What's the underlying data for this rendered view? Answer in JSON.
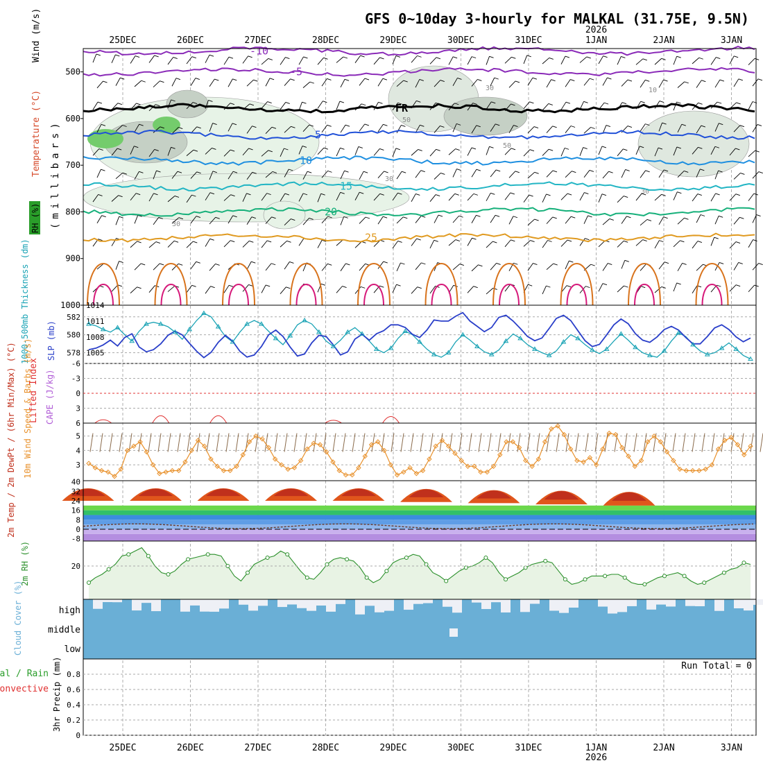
{
  "title": "GFS 0~10day 3-hourly for MALKAL (31.75E, 9.5N)",
  "dates": [
    "25DEC",
    "26DEC",
    "27DEC",
    "28DEC",
    "29DEC",
    "30DEC",
    "31DEC",
    "1JAN",
    "2JAN",
    "3JAN"
  ],
  "year_label": "2026",
  "colors": {
    "temp_label": "#d64a2a",
    "wind_label": "#000000",
    "rh_green": "#2a9d2a",
    "thickness": "#1aa3b5",
    "slp": "#2a3fc9",
    "lifted": "#e03030",
    "cape": "#b05cd6",
    "wind10": "#e8902a",
    "cloud": "#6aafd6",
    "rh2m": "#2a8f2a"
  },
  "chart_data": [
    {
      "type": "contour",
      "panel": "upper_air",
      "ylabel": "(millibars)",
      "side_labels": [
        "RH (%)",
        "Temperature (°C)",
        "Wind (m/s)"
      ],
      "y_ticks": [
        500,
        600,
        700,
        800,
        900,
        1000
      ],
      "ylim": [
        450,
        1000
      ],
      "isotherms": [
        {
          "label": "-10",
          "level_mb": 455
        },
        {
          "label": "-5",
          "level_mb": 500
        },
        {
          "label": "FR",
          "level_mb": 578
        },
        {
          "label": "5",
          "level_mb": 635
        },
        {
          "label": "10",
          "level_mb": 690
        },
        {
          "label": "15",
          "level_mb": 745
        },
        {
          "label": "20",
          "level_mb": 800
        },
        {
          "label": "25",
          "level_mb": 855
        }
      ],
      "rh_labels": [
        "30",
        "50",
        "10"
      ]
    },
    {
      "type": "line",
      "panel": "thickness_slp",
      "ylabel_left": "1000-500mb Thickness (dm)",
      "ylabel_right": "SLP (mb)",
      "left_ticks": [
        578,
        580,
        582
      ],
      "right_ticks": [
        1005,
        1008,
        1011,
        1014
      ],
      "left_ylim": [
        576.8,
        583.3
      ],
      "right_ylim": [
        1003.0,
        1014.0
      ],
      "thickness": [
        581.2,
        581.0,
        580.6,
        580.3,
        580.8,
        580.0,
        579.3,
        580.4,
        581.2,
        581.4,
        581.2,
        580.9,
        580.3,
        579.5,
        580.6,
        581.6,
        582.4,
        582.0,
        580.9,
        579.8,
        579.2,
        580.3,
        581.2,
        581.6,
        581.2,
        580.4,
        579.6,
        578.9,
        579.9,
        581.1,
        581.6,
        581.2,
        580.3,
        579.3,
        578.7,
        579.4,
        580.3,
        580.8,
        580.1,
        579.3,
        578.4,
        578.0,
        578.5,
        579.6,
        580.4,
        580.0,
        579.2,
        578.4,
        577.8,
        577.5,
        578.0,
        579.2,
        580.0,
        579.4,
        578.7,
        578.1,
        577.8,
        578.3,
        579.3,
        580.1,
        579.6,
        578.9,
        578.4,
        578.0,
        577.7,
        578.2,
        579.2,
        580.0,
        579.6,
        578.9,
        578.3,
        577.9,
        578.4,
        579.3,
        580.1,
        579.4,
        578.6,
        578.0,
        577.7,
        577.5,
        578.2,
        579.3,
        580.2,
        579.8,
        578.9,
        578.2,
        577.8,
        578.0,
        578.5,
        579.1,
        578.4,
        577.7,
        577.3
      ],
      "slp": [
        1005.6,
        1005.9,
        1006.5,
        1007.4,
        1006.3,
        1007.9,
        1008.6,
        1006.1,
        1005.2,
        1005.6,
        1006.7,
        1008.3,
        1009.1,
        1008.4,
        1006.8,
        1005.3,
        1004.1,
        1005.1,
        1007.0,
        1008.3,
        1007.2,
        1005.3,
        1004.2,
        1004.6,
        1006.2,
        1008.4,
        1009.3,
        1008.1,
        1006.1,
        1004.4,
        1004.8,
        1006.9,
        1008.3,
        1008.1,
        1006.5,
        1004.6,
        1005.2,
        1007.6,
        1008.5,
        1007.4,
        1008.6,
        1009.2,
        1010.3,
        1010.3,
        1009.8,
        1008.5,
        1007.9,
        1009.3,
        1011.2,
        1011.0,
        1011.0,
        1011.9,
        1012.6,
        1011.0,
        1010.0,
        1009.0,
        1009.8,
        1011.7,
        1012.1,
        1011.0,
        1009.6,
        1008.1,
        1007.3,
        1007.8,
        1009.6,
        1011.5,
        1012.1,
        1011.1,
        1009.2,
        1007.3,
        1006.2,
        1006.6,
        1008.4,
        1010.3,
        1011.4,
        1010.5,
        1008.6,
        1007.4,
        1007.0,
        1008.0,
        1009.4,
        1010.0,
        1009.3,
        1007.9,
        1006.7,
        1006.7,
        1008.1,
        1009.7,
        1010.3,
        1009.4,
        1008.0,
        1007.1,
        1007.8
      ]
    },
    {
      "type": "line",
      "panel": "stability",
      "ylabel_left": "Lifted Index",
      "ylabel_right": "CAPE (J/kg)",
      "y_ticks": [
        "6",
        "3",
        "0",
        "-3",
        "-6"
      ],
      "lifted_index_peaks": [
        2,
        10,
        18,
        34,
        42
      ],
      "lifted_index_values": [
        5.2,
        3.6,
        3.6,
        5.4,
        3.9
      ]
    },
    {
      "type": "line",
      "panel": "wind10m",
      "ylabel": "10m Wind Speed & Barbs (m/s)",
      "y_ticks": [
        3,
        4,
        5
      ],
      "ylim": [
        1.9,
        5.9
      ],
      "speed": [
        3.1,
        2.8,
        2.6,
        2.5,
        2.2,
        2.7,
        4.0,
        4.3,
        4.6,
        3.9,
        3.0,
        2.4,
        2.5,
        2.6,
        2.6,
        3.2,
        4.0,
        4.7,
        4.3,
        3.4,
        2.9,
        2.6,
        2.6,
        2.9,
        3.7,
        4.6,
        5.0,
        4.8,
        4.2,
        3.4,
        3.0,
        2.7,
        2.8,
        3.3,
        4.1,
        4.5,
        4.4,
        3.9,
        3.2,
        2.6,
        2.3,
        2.3,
        2.8,
        3.6,
        4.4,
        4.6,
        4.0,
        3.0,
        2.3,
        2.5,
        2.8,
        2.4,
        2.6,
        3.4,
        4.3,
        4.7,
        4.3,
        3.8,
        3.3,
        2.9,
        2.9,
        2.5,
        2.5,
        2.9,
        3.7,
        4.6,
        4.6,
        4.2,
        3.3,
        2.9,
        3.4,
        4.6,
        5.5,
        5.7,
        5.1,
        4.1,
        3.3,
        3.2,
        3.5,
        3.0,
        4.1,
        5.2,
        5.1,
        4.2,
        3.6,
        2.9,
        3.3,
        4.6,
        5.0,
        4.6,
        3.9,
        3.3,
        2.7,
        2.6,
        2.6,
        2.6,
        2.7,
        3.0,
        4.1,
        4.7,
        4.9,
        4.4,
        3.7,
        4.3
      ]
    },
    {
      "type": "area",
      "panel": "temp2m",
      "ylabel": "2m Temp / 2m DewPt / (6hr Min/Max) (°C)",
      "y_ticks": [
        -8,
        0,
        8,
        16,
        24,
        32,
        40
      ],
      "ylim": [
        -10,
        41
      ],
      "temp_max_daily": [
        38,
        38,
        38,
        38,
        38,
        38,
        37,
        37,
        36
      ],
      "temp_min_daily": [
        24,
        24,
        24,
        24,
        24,
        23,
        22,
        21,
        20
      ],
      "dewpoint_range": [
        -1,
        6
      ]
    },
    {
      "type": "line",
      "panel": "rh2m",
      "ylabel": "2m RH (%)",
      "y_ticks": [
        20
      ],
      "ylim": [
        0,
        35
      ],
      "rh": [
        10,
        13,
        15,
        18,
        21,
        26,
        27,
        29,
        31,
        26,
        20,
        16,
        15,
        17,
        21,
        24,
        25,
        26,
        27,
        27,
        26,
        20,
        14,
        11,
        16,
        21,
        23,
        25,
        26,
        29,
        27,
        22,
        17,
        13,
        12,
        16,
        21,
        24,
        25,
        24,
        23,
        19,
        13,
        10,
        12,
        17,
        22,
        24,
        25,
        27,
        26,
        21,
        16,
        14,
        11,
        14,
        17,
        19,
        20,
        22,
        25,
        22,
        16,
        12,
        14,
        16,
        19,
        21,
        22,
        23,
        22,
        17,
        12,
        9,
        10,
        12,
        14,
        14,
        14,
        15,
        15,
        13,
        10,
        9,
        9,
        11,
        13,
        14,
        15,
        16,
        14,
        11,
        9,
        10,
        12,
        14,
        16,
        18,
        19,
        22,
        21
      ]
    },
    {
      "type": "bar",
      "panel": "cloud",
      "ylabel": "Cloud Cover (%)",
      "levels": [
        "high",
        "middle",
        "low"
      ]
    },
    {
      "type": "bar",
      "panel": "precip",
      "ylabel": "3hr Precip (mm)",
      "side_labels": [
        "Total / Rain",
        "Convective"
      ],
      "y_ticks": [
        0,
        0.2,
        0.4,
        0.6,
        0.8
      ],
      "ylim": [
        0,
        1.0
      ],
      "run_total_label": "Run Total = 0",
      "values": []
    }
  ]
}
